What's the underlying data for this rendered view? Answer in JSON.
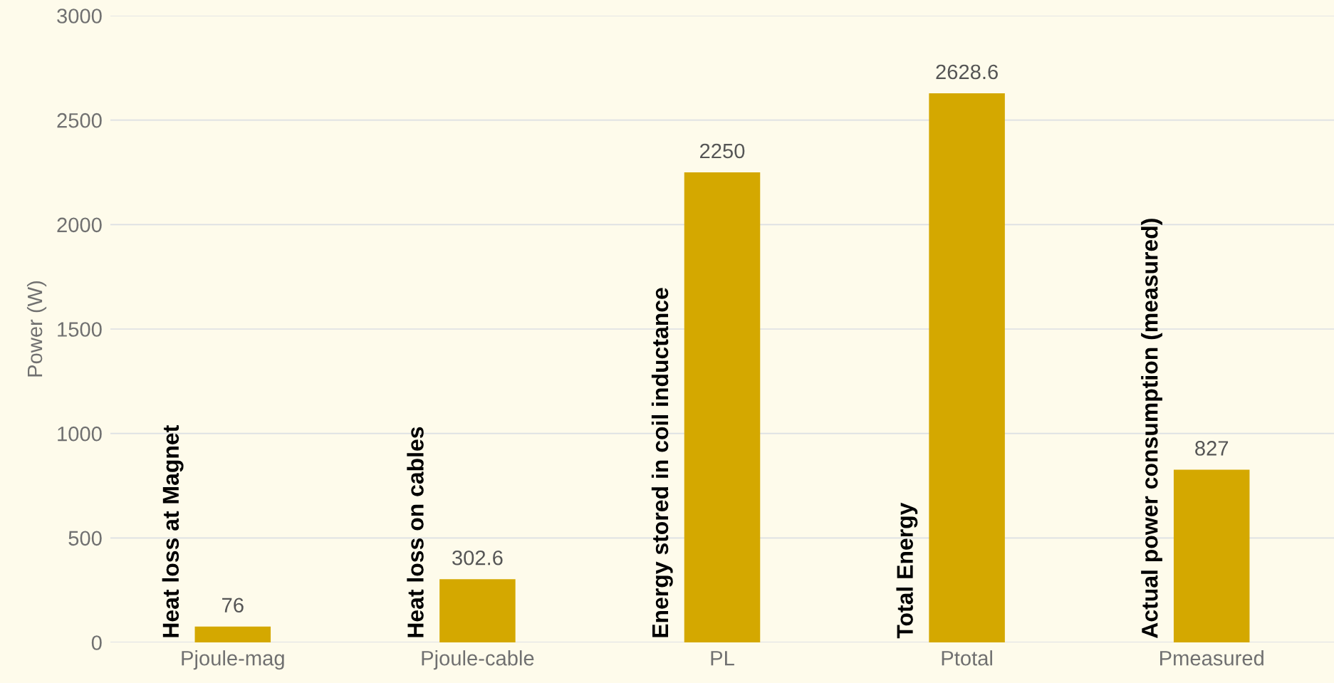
{
  "chart_data": {
    "type": "bar",
    "ylabel": "Power (W)",
    "categories": [
      "Pjoule-mag",
      "Pjoule-cable",
      "PL",
      "Ptotal",
      "Pmeasured"
    ],
    "values": [
      76,
      302.6,
      2250,
      2628.6,
      827
    ],
    "color": "#d4a800",
    "ylim": [
      0,
      3000
    ],
    "yticks": [
      0,
      500,
      1000,
      1500,
      2000,
      2500,
      3000
    ],
    "grid": "y",
    "data_labels": true,
    "legend": false,
    "annotations": [
      {
        "text": "Heat loss at Magnet",
        "x": "Pjoule-mag",
        "y": 0
      },
      {
        "text": "Heat loss on cables",
        "x": "Pjoule-cable",
        "y": 0
      },
      {
        "text": "Energy stored in coil inductance",
        "x": "PL",
        "y": 0
      },
      {
        "text": "Total Energy",
        "x": "Ptotal",
        "y": 0
      },
      {
        "text": "Actual power consumption (measured)",
        "x": "Pmeasured",
        "y": 0
      }
    ]
  }
}
